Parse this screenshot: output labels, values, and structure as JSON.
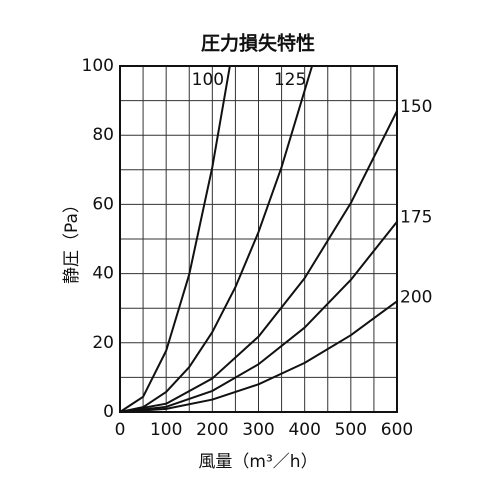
{
  "chart_data": {
    "type": "line",
    "title": "圧力損失特性",
    "x_label": "風量（m³／h）",
    "y_label": "静圧（Pa）",
    "xlim": [
      0,
      600
    ],
    "ylim": [
      0,
      100
    ],
    "xticks": [
      0,
      100,
      200,
      300,
      400,
      500,
      600
    ],
    "yticks": [
      0,
      20,
      40,
      60,
      80,
      100
    ],
    "grid": true,
    "color": "#111111",
    "series": [
      {
        "name": "100",
        "x": [
          0,
          50,
          100,
          150,
          200,
          238
        ],
        "values": [
          0,
          4.4,
          17.7,
          39.8,
          70.8,
          100
        ]
      },
      {
        "name": "125",
        "x": [
          0,
          50,
          100,
          150,
          200,
          250,
          300,
          350,
          416
        ],
        "values": [
          0,
          1.4,
          5.8,
          13,
          23.1,
          36.1,
          52,
          70.8,
          100
        ]
      },
      {
        "name": "150",
        "x": [
          0,
          100,
          200,
          300,
          400,
          500,
          600
        ],
        "values": [
          0,
          2.4,
          9.7,
          21.8,
          38.7,
          60.4,
          87
        ]
      },
      {
        "name": "175",
        "x": [
          0,
          100,
          200,
          300,
          400,
          500,
          600
        ],
        "values": [
          0,
          1.5,
          6.1,
          13.8,
          24.4,
          38.2,
          55
        ]
      },
      {
        "name": "200",
        "x": [
          0,
          100,
          200,
          300,
          400,
          500,
          600
        ],
        "values": [
          0,
          0.9,
          3.6,
          8,
          14.2,
          22.2,
          32
        ]
      }
    ]
  }
}
